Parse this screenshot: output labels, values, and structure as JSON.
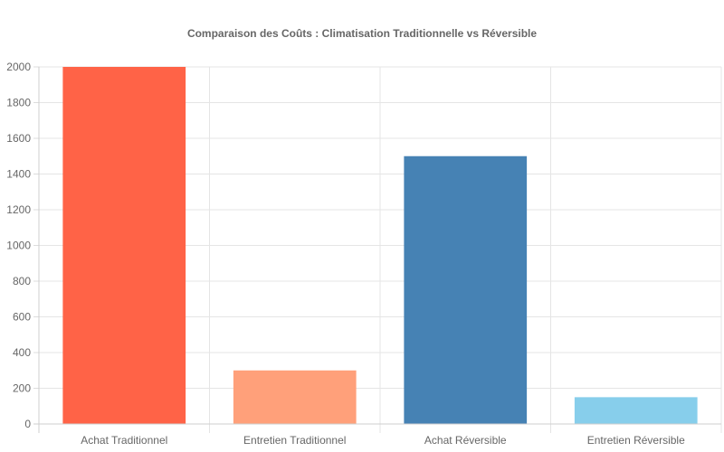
{
  "chart_data": {
    "type": "bar",
    "title": "Comparaison des Coûts : Climatisation Traditionnelle vs Réversible",
    "xlabel": "",
    "ylabel": "",
    "categories": [
      "Achat Traditionnel",
      "Entretien Traditionnel",
      "Achat Réversible",
      "Entretien Réversible"
    ],
    "series": [
      {
        "values": [
          2000,
          300,
          1500,
          150
        ],
        "colors": [
          "#FF6347",
          "#FFA07A",
          "#4682B4",
          "#87CEEB"
        ]
      }
    ],
    "ylim": [
      0,
      2000
    ],
    "yticks": [
      "0",
      "200",
      "400",
      "600",
      "800",
      "1000",
      "1200",
      "1400",
      "1600",
      "1800",
      "2000"
    ],
    "grid": true,
    "legend": "none"
  }
}
